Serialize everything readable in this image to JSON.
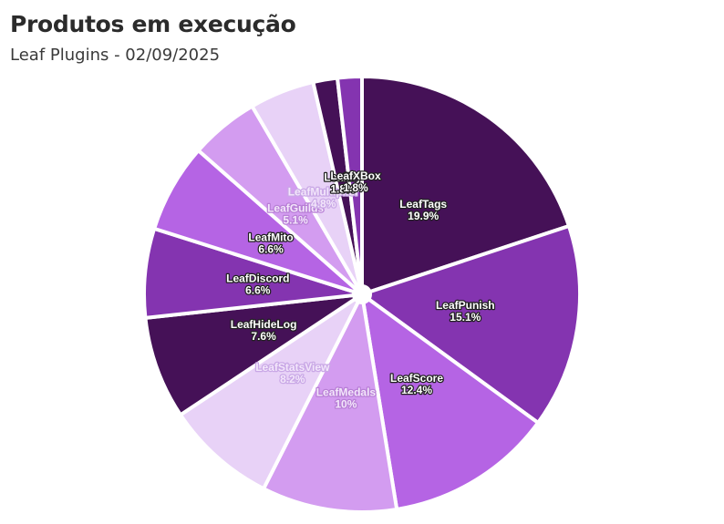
{
  "header": {
    "title": "Produtos em execução",
    "subtitle": "Leaf Plugins - 02/09/2025"
  },
  "chart_data": {
    "type": "pie",
    "title": "Produtos em execução",
    "subtitle": "Leaf Plugins - 02/09/2025",
    "label_format": "name + percent inside slice",
    "slices": [
      {
        "name": "LeafTags",
        "value": 19.9,
        "label": "19.9%",
        "color": "#451157",
        "text_color": "#ffffff",
        "outline_color": "#222222"
      },
      {
        "name": "LeafPunish",
        "value": 15.1,
        "label": "15.1%",
        "color": "#8434b0",
        "text_color": "#ffffff",
        "outline_color": "#222222"
      },
      {
        "name": "LeafScore",
        "value": 12.4,
        "label": "12.4%",
        "color": "#b564e4",
        "text_color": "#ffffff",
        "outline_color": "#222222"
      },
      {
        "name": "LeafMedals",
        "value": 10,
        "label": "10%",
        "color": "#d39cf0",
        "text_color": "#f3e6fb",
        "outline_color": "#b87fd6"
      },
      {
        "name": "LeafStatsView",
        "value": 8.2,
        "label": "8.2%",
        "color": "#e8d2f7",
        "text_color": "#f3e6fb",
        "outline_color": "#c9a8e6"
      },
      {
        "name": "LeafHideLog",
        "value": 7.6,
        "label": "7.6%",
        "color": "#451157",
        "text_color": "#ffffff",
        "outline_color": "#222222"
      },
      {
        "name": "LeafDiscord",
        "value": 6.6,
        "label": "6.6%",
        "color": "#8434b0",
        "text_color": "#ffffff",
        "outline_color": "#222222"
      },
      {
        "name": "LeafMito",
        "value": 6.6,
        "label": "6.6%",
        "color": "#b564e4",
        "text_color": "#ffffff",
        "outline_color": "#222222"
      },
      {
        "name": "LeafGuilds",
        "value": 5.1,
        "label": "5.1%",
        "color": "#d39cf0",
        "text_color": "#f3e6fb",
        "outline_color": "#b87fd6"
      },
      {
        "name": "LeafMultiplier",
        "value": 4.8,
        "label": "4.8%",
        "color": "#e8d2f7",
        "text_color": "#f3e6fb",
        "outline_color": "#c9a8e6"
      },
      {
        "name": "LeafMy",
        "value": 1.8,
        "label": "1.8%",
        "color": "#451157",
        "text_color": "#ffffff",
        "outline_color": "#222222"
      },
      {
        "name": "LeafXBox",
        "value": 1.8,
        "label": "1.8%",
        "color": "#8434b0",
        "text_color": "#ffffff",
        "outline_color": "#222222"
      }
    ]
  }
}
